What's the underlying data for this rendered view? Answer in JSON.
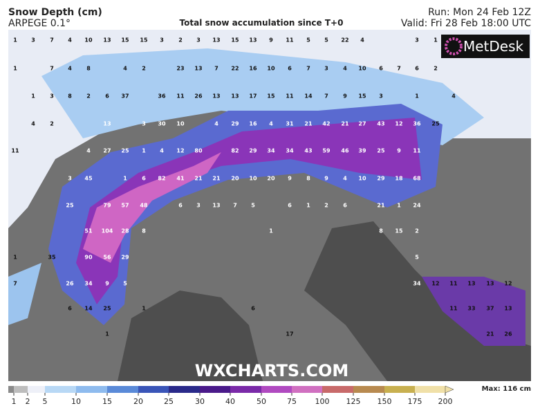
{
  "header": {
    "title": "Snow Depth (cm)",
    "model": "ARPEGE 0.1°",
    "subtitle": "Total snow accumulation since T+0",
    "run": "Run: Mon 24 Feb 12Z",
    "valid": "Valid: Fri 28 Feb 18:00 UTC"
  },
  "logo": "MetDesk",
  "watermark": "WXCHARTS.COM",
  "max_label": "Max: 116 cm",
  "legend": {
    "ticks": [
      1,
      2,
      5,
      10,
      15,
      20,
      25,
      30,
      40,
      50,
      75,
      100,
      125,
      150,
      175,
      200
    ],
    "colors": [
      "#8a8a8a",
      "#bdbdbd",
      "#eef0f8",
      "#b8d8f5",
      "#8ebbee",
      "#5a8ad8",
      "#3a55b8",
      "#2a2a8a",
      "#4a1a8a",
      "#7a2aa8",
      "#b04ac0",
      "#d070c0",
      "#c86a6a",
      "#b88a50",
      "#c8b050",
      "#f0e0a8"
    ]
  },
  "map_labels": [
    "1",
    "3",
    "7",
    "4",
    "10",
    "13",
    "15",
    "15",
    "3",
    "2",
    "3",
    "13",
    "15",
    "13",
    "9",
    "11",
    "5",
    "5",
    "22",
    "4",
    "3",
    "1",
    "1",
    "7",
    "4",
    "8",
    "4",
    "2",
    "23",
    "13",
    "7",
    "22",
    "16",
    "10",
    "6",
    "7",
    "3",
    "4",
    "10",
    "6",
    "7",
    "6",
    "2",
    "1",
    "3",
    "8",
    "2",
    "6",
    "37",
    "36",
    "11",
    "26",
    "13",
    "13",
    "17",
    "15",
    "11",
    "14",
    "7",
    "9",
    "15",
    "3",
    "1",
    "4",
    "4",
    "2",
    "13",
    "3",
    "30",
    "10",
    "4",
    "29",
    "16",
    "4",
    "31",
    "21",
    "42",
    "21",
    "27",
    "43",
    "12",
    "36",
    "25",
    "11",
    "4",
    "27",
    "25",
    "1",
    "4",
    "12",
    "80",
    "82",
    "29",
    "34",
    "34",
    "43",
    "59",
    "46",
    "39",
    "25",
    "9",
    "11",
    "3",
    "45",
    "1",
    "6",
    "82",
    "41",
    "21",
    "21",
    "20",
    "10",
    "20",
    "9",
    "8",
    "9",
    "4",
    "10",
    "29",
    "18",
    "68",
    "25",
    "79",
    "57",
    "48",
    "6",
    "3",
    "13",
    "7",
    "5",
    "6",
    "1",
    "2",
    "6",
    "21",
    "1",
    "24",
    "51",
    "104",
    "28",
    "8",
    "1",
    "8",
    "15",
    "2",
    "1",
    "35",
    "90",
    "56",
    "29",
    "5",
    "7",
    "26",
    "34",
    "9",
    "5",
    "34",
    "12",
    "11",
    "13",
    "13",
    "12",
    "6",
    "14",
    "25",
    "1",
    "6",
    "11",
    "33",
    "37",
    "13",
    "1",
    "17",
    "21",
    "26"
  ]
}
